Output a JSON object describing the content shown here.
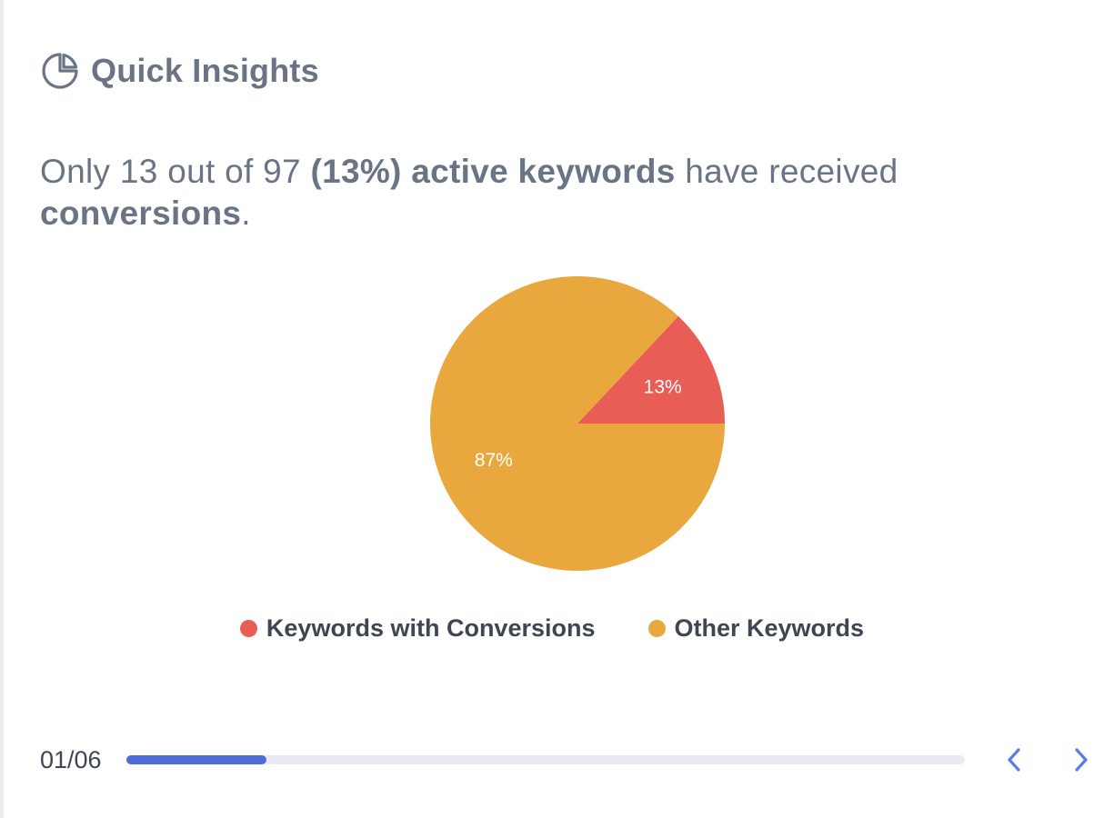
{
  "header": {
    "title": "Quick Insights",
    "icon": "pie-chart-icon"
  },
  "insight": {
    "prefix": "Only 13 out of 97 ",
    "bold_1": "(13%) active keywords",
    "middle": " have received ",
    "bold_2": "conversions",
    "suffix": "."
  },
  "chart_data": {
    "type": "pie",
    "slices": [
      {
        "name": "Keywords with Conversions",
        "value": 13,
        "label": "13%",
        "color": "#e85d55"
      },
      {
        "name": "Other Keywords",
        "value": 87,
        "label": "87%",
        "color": "#e8a83e"
      }
    ],
    "legend_position": "bottom"
  },
  "legend": {
    "items": [
      {
        "label": "Keywords with Conversions",
        "color": "#e85d55"
      },
      {
        "label": "Other Keywords",
        "color": "#e8a83e"
      }
    ]
  },
  "footer": {
    "page_count": "01/06",
    "progress": 0.167,
    "progress_color": "#4f6bd9",
    "prev_icon": "chevron-left-icon",
    "next_icon": "chevron-right-icon"
  }
}
